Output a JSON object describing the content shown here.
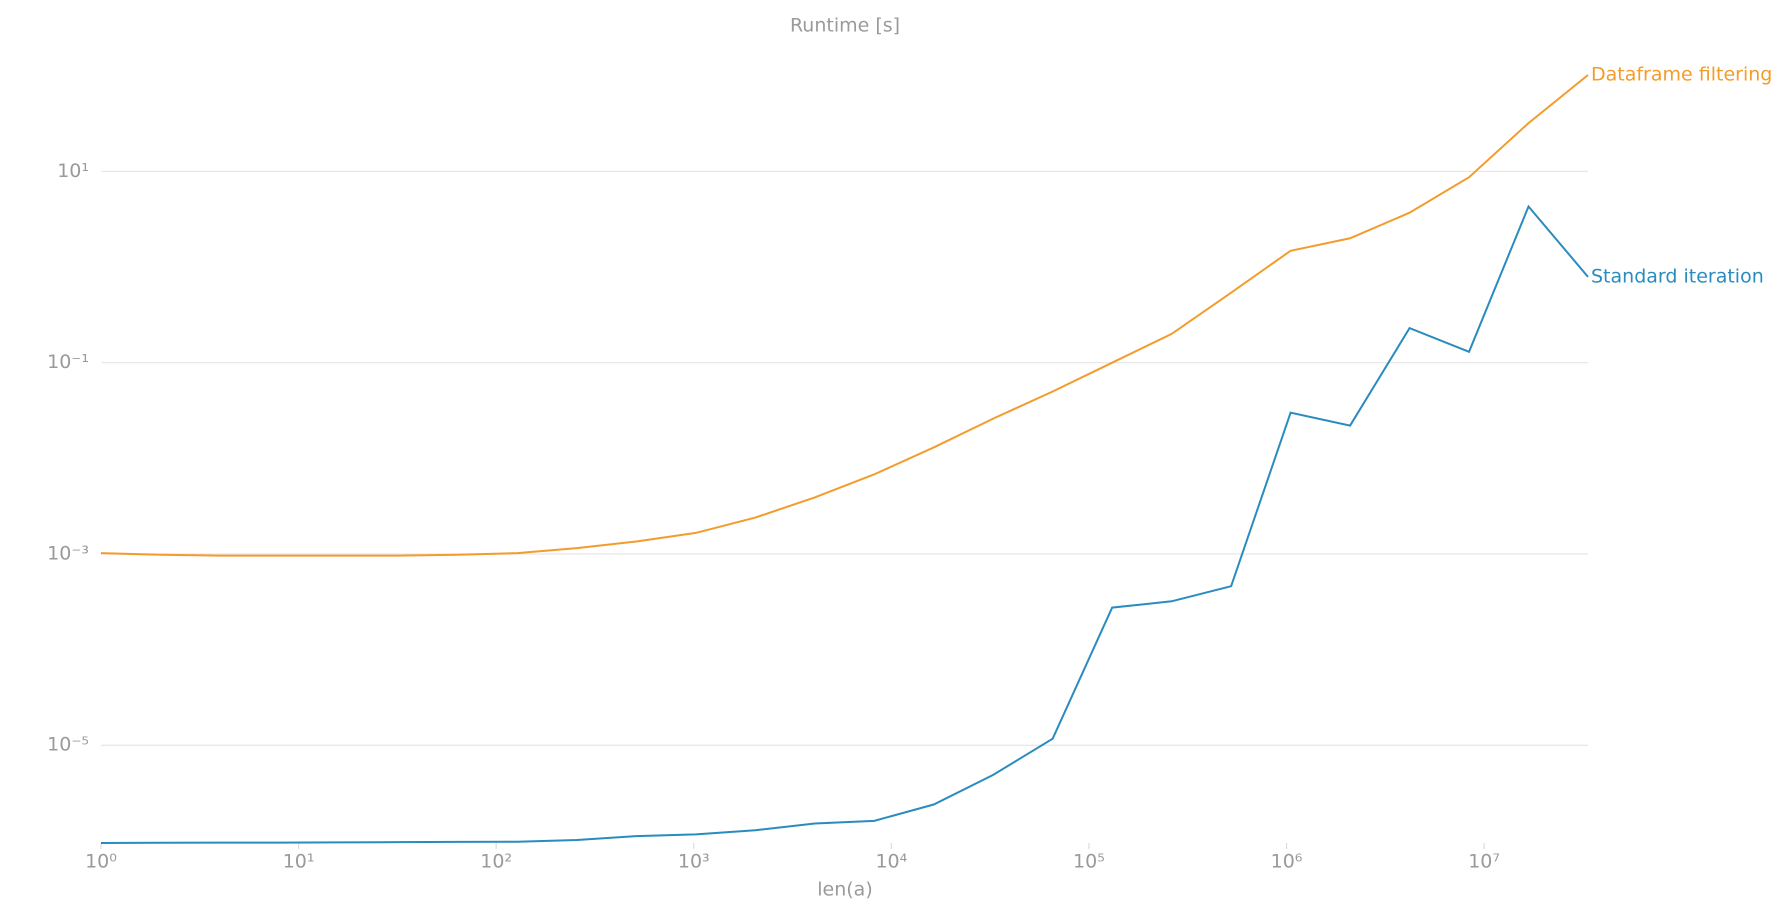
{
  "chart_data": {
    "type": "line",
    "title": "Runtime [s]",
    "x_label": "len(a)",
    "x": [
      1,
      2,
      4,
      8,
      16,
      32,
      64,
      128,
      256,
      512,
      1024,
      2048,
      4096,
      8192,
      16384,
      32768,
      65536,
      131072,
      262144,
      524288,
      1048576,
      2097152,
      4194304,
      8388608,
      16777216,
      33554432
    ],
    "series": [
      {
        "name": "Dataframe filtering",
        "color": "#f39c2b",
        "values": [
          0.00102,
          0.00098,
          0.00096,
          0.00096,
          0.00096,
          0.00096,
          0.00098,
          0.00102,
          0.00115,
          0.00135,
          0.00166,
          0.0024,
          0.0039,
          0.0068,
          0.013,
          0.026,
          0.05,
          0.1,
          0.2,
          0.54,
          1.48,
          2.0,
          3.7,
          8.7,
          32,
          102
        ]
      },
      {
        "name": "Standard iteration",
        "color": "#2a8bbf",
        "values": [
          9.5e-07,
          9.55e-07,
          9.6e-07,
          9.6e-07,
          9.65e-07,
          9.7e-07,
          9.75e-07,
          9.8e-07,
          1.02e-06,
          1.12e-06,
          1.17e-06,
          1.29e-06,
          1.52e-06,
          1.62e-06,
          2.4e-06,
          4.9e-06,
          1.17e-05,
          0.000275,
          0.00032,
          0.00046,
          0.03,
          0.022,
          0.23,
          0.13,
          4.3,
          0.79
        ]
      }
    ],
    "x_log": true,
    "y_log": true,
    "grid": "y",
    "xlim": [
      1,
      33554432
    ],
    "ylim": [
      9.5e-07,
      200
    ],
    "xticks": [
      {
        "value": 1,
        "label": "10⁰"
      },
      {
        "value": 10,
        "label": "10¹"
      },
      {
        "value": 100,
        "label": "10²"
      },
      {
        "value": 1000,
        "label": "10³"
      },
      {
        "value": 10000,
        "label": "10⁴"
      },
      {
        "value": 100000,
        "label": "10⁵"
      },
      {
        "value": 1000000,
        "label": "10⁶"
      },
      {
        "value": 10000000,
        "label": "10⁷"
      }
    ],
    "yticks": [
      {
        "value": 10,
        "label": "10¹"
      },
      {
        "value": 0.1,
        "label": "10⁻¹"
      },
      {
        "value": 0.001,
        "label": "10⁻³"
      },
      {
        "value": 1e-05,
        "label": "10⁻⁵"
      }
    ]
  }
}
